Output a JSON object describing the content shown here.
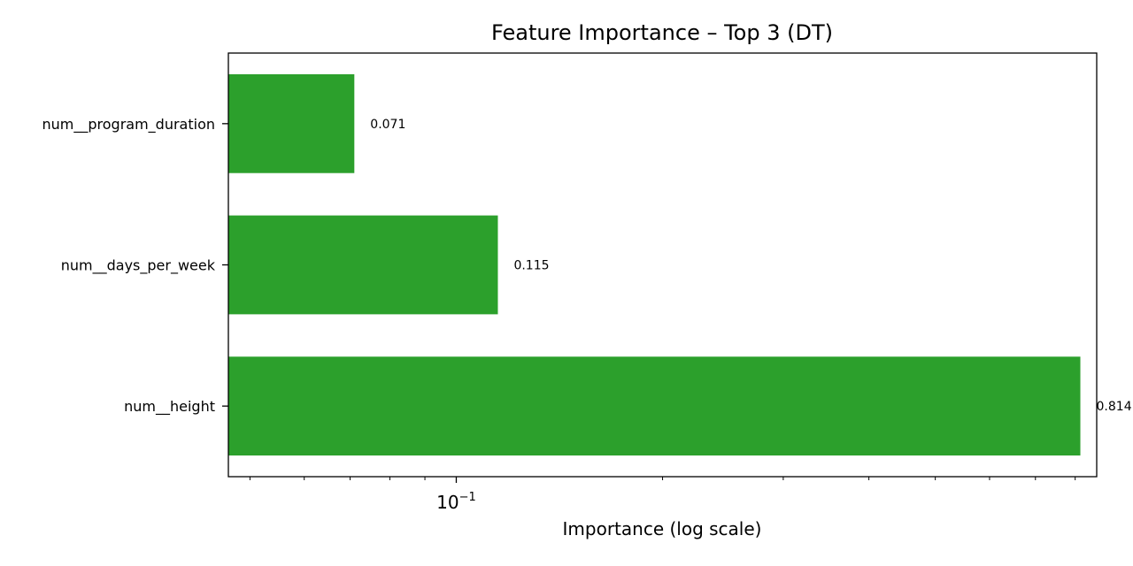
{
  "chart_data": {
    "type": "bar",
    "orientation": "horizontal",
    "title": "Feature Importance – Top 3  (DT)",
    "xlabel": "Importance (log scale)",
    "ylabel": "",
    "x_scale": "log",
    "xlim": [
      0.0465,
      0.86
    ],
    "categories": [
      "num__program_duration",
      "num__days_per_week",
      "num__height"
    ],
    "values": [
      0.071,
      0.115,
      0.814
    ],
    "data_labels": [
      "0.071",
      "0.115",
      "0.814"
    ],
    "x_major_tick": {
      "value": 0.1,
      "base": "10",
      "exponent": "−1"
    },
    "x_minor_ticks": [
      0.05,
      0.06,
      0.07,
      0.08,
      0.09,
      0.2,
      0.3,
      0.4,
      0.5,
      0.6,
      0.7,
      0.8
    ],
    "bar_color": "#2ca02c",
    "grid": false,
    "legend": "none"
  }
}
